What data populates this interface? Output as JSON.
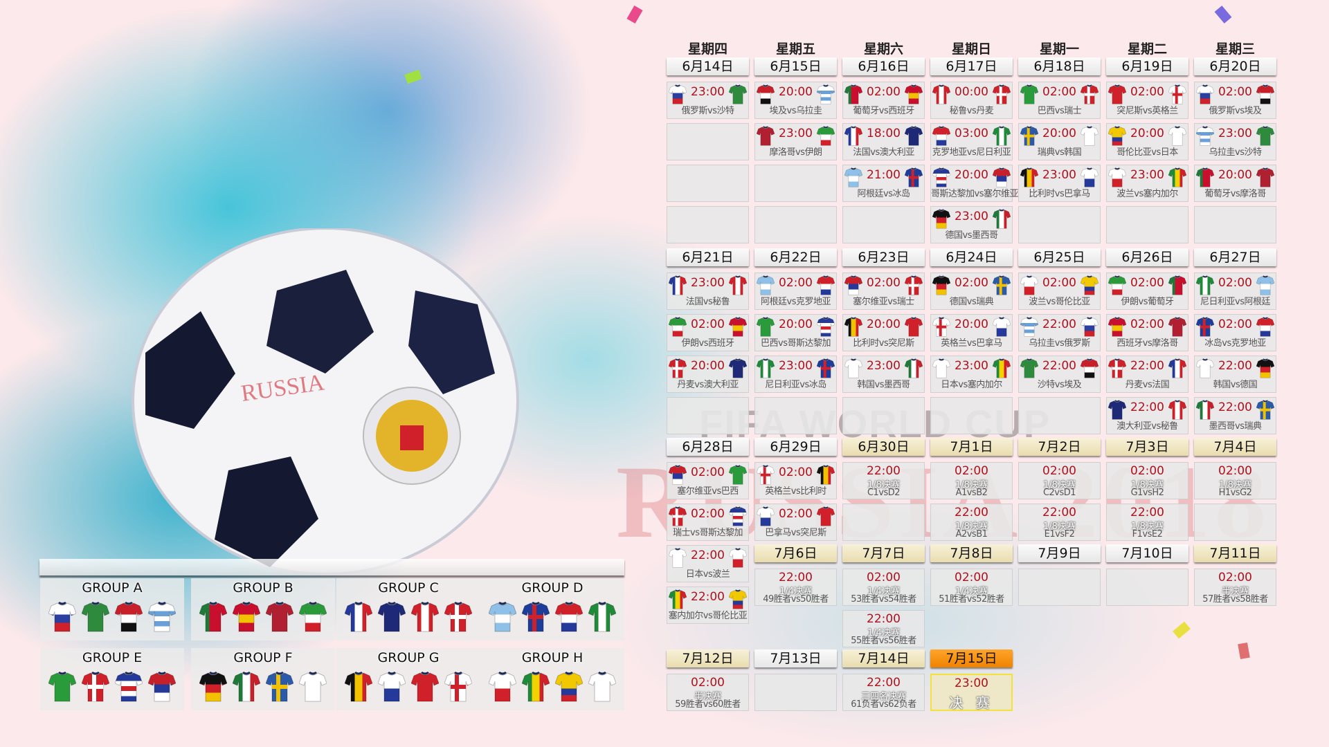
{
  "weekdays": [
    "星期四",
    "星期五",
    "星期六",
    "星期日",
    "星期一",
    "星期二",
    "星期三"
  ],
  "watermark": {
    "fifa": "FIFA WORLD CUP",
    "russia": "RUSSIA 2018"
  },
  "colors": {
    "time": "#b0111d",
    "knockout_header": "#e8dcae",
    "final_header": "#f08200",
    "final_border": "#f2e23a"
  },
  "teams": {
    "俄罗斯": {
      "p": "h",
      "c": [
        "#ffffff",
        "#2a3fa0",
        "#d0202a"
      ]
    },
    "沙特": {
      "p": "s",
      "c": [
        "#2e8b3e"
      ]
    },
    "埃及": {
      "p": "h",
      "c": [
        "#c8202a",
        "#ffffff",
        "#111111"
      ]
    },
    "乌拉圭": {
      "p": "h",
      "c": [
        "#ffffff",
        "#6aa0d8",
        "#ffffff",
        "#6aa0d8",
        "#ffffff"
      ]
    },
    "葡萄牙": {
      "p": "v",
      "c": [
        "#1f7a3a",
        "#c8102e",
        "#c8102e"
      ]
    },
    "西班牙": {
      "p": "h",
      "c": [
        "#c8102e",
        "#f2c200",
        "#c8102e"
      ]
    },
    "摩洛哥": {
      "p": "s",
      "c": [
        "#b02030"
      ]
    },
    "伊朗": {
      "p": "h",
      "c": [
        "#2a9a3a",
        "#ffffff",
        "#d0202a"
      ]
    },
    "法国": {
      "p": "v",
      "c": [
        "#24399a",
        "#ffffff",
        "#d0202a"
      ]
    },
    "澳大利亚": {
      "p": "s",
      "c": [
        "#1e2a78"
      ]
    },
    "秘鲁": {
      "p": "v",
      "c": [
        "#d0202a",
        "#ffffff",
        "#d0202a"
      ]
    },
    "丹麦": {
      "p": "x",
      "c": [
        "#d0202a",
        "#ffffff"
      ]
    },
    "阿根廷": {
      "p": "h",
      "c": [
        "#8ec0e8",
        "#ffffff",
        "#8ec0e8"
      ]
    },
    "冰岛": {
      "p": "x",
      "c": [
        "#1e3c9a",
        "#d0202a"
      ]
    },
    "克罗地亚": {
      "p": "h",
      "c": [
        "#d0202a",
        "#ffffff",
        "#24399a"
      ]
    },
    "尼日利亚": {
      "p": "v",
      "c": [
        "#1f8a3a",
        "#ffffff",
        "#1f8a3a"
      ]
    },
    "巴西": {
      "p": "s",
      "c": [
        "#2a9b3a"
      ]
    },
    "瑞士": {
      "p": "x",
      "c": [
        "#d0202a",
        "#ffffff"
      ]
    },
    "哥斯达黎加": {
      "p": "h",
      "c": [
        "#24399a",
        "#ffffff",
        "#d0202a",
        "#ffffff",
        "#24399a"
      ]
    },
    "塞尔维亚": {
      "p": "h",
      "c": [
        "#c8202a",
        "#24399a",
        "#ffffff"
      ]
    },
    "德国": {
      "p": "h",
      "c": [
        "#111111",
        "#d0202a",
        "#f2c200"
      ]
    },
    "墨西哥": {
      "p": "v",
      "c": [
        "#1f7a3a",
        "#ffffff",
        "#c8202a"
      ]
    },
    "瑞典": {
      "p": "x",
      "c": [
        "#2a5aa8",
        "#f2c200"
      ]
    },
    "韩国": {
      "p": "s",
      "c": [
        "#ffffff"
      ]
    },
    "比利时": {
      "p": "v",
      "c": [
        "#111111",
        "#f2c200",
        "#d0202a"
      ]
    },
    "巴拿马": {
      "p": "h",
      "c": [
        "#ffffff",
        "#24399a"
      ]
    },
    "突尼斯": {
      "p": "s",
      "c": [
        "#d0202a"
      ]
    },
    "英格兰": {
      "p": "x",
      "c": [
        "#ffffff",
        "#d0202a"
      ]
    },
    "波兰": {
      "p": "h",
      "c": [
        "#ffffff",
        "#d0202a"
      ]
    },
    "塞内加尔": {
      "p": "v",
      "c": [
        "#1f8a3a",
        "#f2d200",
        "#d0202a"
      ]
    },
    "哥伦比亚": {
      "p": "h",
      "c": [
        "#f2c800",
        "#f2c800",
        "#24399a",
        "#d0202a"
      ]
    },
    "日本": {
      "p": "s",
      "c": [
        "#ffffff"
      ]
    }
  },
  "weeks": [
    {
      "start_col": 0,
      "days": [
        {
          "date": "6月14日",
          "style": "group",
          "matches": [
            {
              "time": "23:00",
              "home": "俄罗斯",
              "away": "沙特",
              "label": "俄罗斯vs沙特"
            }
          ]
        },
        {
          "date": "6月15日",
          "style": "group",
          "matches": [
            {
              "time": "20:00",
              "home": "埃及",
              "away": "乌拉圭",
              "label": "埃及vs乌拉圭"
            },
            {
              "time": "23:00",
              "home": "摩洛哥",
              "away": "伊朗",
              "label": "摩洛哥vs伊朗"
            }
          ]
        },
        {
          "date": "6月16日",
          "style": "group",
          "matches": [
            {
              "time": "02:00",
              "home": "葡萄牙",
              "away": "西班牙",
              "label": "葡萄牙vs西班牙"
            },
            {
              "time": "18:00",
              "home": "法国",
              "away": "澳大利亚",
              "label": "法国vs澳大利亚"
            },
            {
              "time": "21:00",
              "home": "阿根廷",
              "away": "冰岛",
              "label": "阿根廷vs冰岛"
            }
          ]
        },
        {
          "date": "6月17日",
          "style": "group",
          "matches": [
            {
              "time": "00:00",
              "home": "秘鲁",
              "away": "丹麦",
              "label": "秘鲁vs丹麦"
            },
            {
              "time": "03:00",
              "home": "克罗地亚",
              "away": "尼日利亚",
              "label": "克罗地亚vs尼日利亚"
            },
            {
              "time": "20:00",
              "home": "哥斯达黎加",
              "away": "塞尔维亚",
              "label": "哥斯达黎加vs塞尔维亚"
            },
            {
              "time": "23:00",
              "home": "德国",
              "away": "墨西哥",
              "label": "德国vs墨西哥"
            }
          ]
        },
        {
          "date": "6月18日",
          "style": "group",
          "matches": [
            {
              "time": "02:00",
              "home": "巴西",
              "away": "瑞士",
              "label": "巴西vs瑞士"
            },
            {
              "time": "20:00",
              "home": "瑞典",
              "away": "韩国",
              "label": "瑞典vs韩国"
            },
            {
              "time": "23:00",
              "home": "比利时",
              "away": "巴拿马",
              "label": "比利时vs巴拿马"
            }
          ]
        },
        {
          "date": "6月19日",
          "style": "group",
          "matches": [
            {
              "time": "02:00",
              "home": "突尼斯",
              "away": "英格兰",
              "label": "突尼斯vs英格兰"
            },
            {
              "time": "20:00",
              "home": "哥伦比亚",
              "away": "日本",
              "label": "哥伦比亚vs日本"
            },
            {
              "time": "23:00",
              "home": "波兰",
              "away": "塞内加尔",
              "label": "波兰vs塞内加尔"
            }
          ]
        },
        {
          "date": "6月20日",
          "style": "group",
          "matches": [
            {
              "time": "02:00",
              "home": "俄罗斯",
              "away": "埃及",
              "label": "俄罗斯vs埃及"
            },
            {
              "time": "23:00",
              "home": "乌拉圭",
              "away": "沙特",
              "label": "乌拉圭vs沙特"
            },
            {
              "time": "20:00",
              "home": "葡萄牙",
              "away": "摩洛哥",
              "label": "葡萄牙vs摩洛哥"
            }
          ]
        }
      ]
    },
    {
      "start_col": 0,
      "days": [
        {
          "date": "6月21日",
          "style": "group",
          "matches": [
            {
              "time": "23:00",
              "home": "法国",
              "away": "秘鲁",
              "label": "法国vs秘鲁"
            },
            {
              "time": "02:00",
              "home": "伊朗",
              "away": "西班牙",
              "label": "伊朗vs西班牙"
            },
            {
              "time": "20:00",
              "home": "丹麦",
              "away": "澳大利亚",
              "label": "丹麦vs澳大利亚"
            }
          ]
        },
        {
          "date": "6月22日",
          "style": "group",
          "matches": [
            {
              "time": "02:00",
              "home": "阿根廷",
              "away": "克罗地亚",
              "label": "阿根廷vs克罗地亚"
            },
            {
              "time": "20:00",
              "home": "巴西",
              "away": "哥斯达黎加",
              "label": "巴西vs哥斯达黎加"
            },
            {
              "time": "23:00",
              "home": "尼日利亚",
              "away": "冰岛",
              "label": "尼日利亚vs冰岛"
            }
          ]
        },
        {
          "date": "6月23日",
          "style": "group",
          "matches": [
            {
              "time": "02:00",
              "home": "塞尔维亚",
              "away": "瑞士",
              "label": "塞尔维亚vs瑞士"
            },
            {
              "time": "20:00",
              "home": "比利时",
              "away": "突尼斯",
              "label": "比利时vs突尼斯"
            },
            {
              "time": "23:00",
              "home": "韩国",
              "away": "墨西哥",
              "label": "韩国vs墨西哥"
            }
          ]
        },
        {
          "date": "6月24日",
          "style": "group",
          "matches": [
            {
              "time": "02:00",
              "home": "德国",
              "away": "瑞典",
              "label": "德国vs瑞典"
            },
            {
              "time": "20:00",
              "home": "英格兰",
              "away": "巴拿马",
              "label": "英格兰vs巴拿马"
            },
            {
              "time": "23:00",
              "home": "日本",
              "away": "塞内加尔",
              "label": "日本vs塞内加尔"
            }
          ]
        },
        {
          "date": "6月25日",
          "style": "group",
          "matches": [
            {
              "time": "02:00",
              "home": "波兰",
              "away": "哥伦比亚",
              "label": "波兰vs哥伦比亚"
            },
            {
              "time": "22:00",
              "home": "乌拉圭",
              "away": "俄罗斯",
              "label": "乌拉圭vs俄罗斯"
            },
            {
              "time": "22:00",
              "home": "沙特",
              "away": "埃及",
              "label": "沙特vs埃及"
            }
          ]
        },
        {
          "date": "6月26日",
          "style": "group",
          "matches": [
            {
              "time": "02:00",
              "home": "伊朗",
              "away": "葡萄牙",
              "label": "伊朗vs葡萄牙"
            },
            {
              "time": "02:00",
              "home": "西班牙",
              "away": "摩洛哥",
              "label": "西班牙vs摩洛哥"
            },
            {
              "time": "22:00",
              "home": "丹麦",
              "away": "法国",
              "label": "丹麦vs法国"
            },
            {
              "time": "22:00",
              "home": "澳大利亚",
              "away": "秘鲁",
              "label": "澳大利亚vs秘鲁"
            }
          ]
        },
        {
          "date": "6月27日",
          "style": "group",
          "matches": [
            {
              "time": "02:00",
              "home": "尼日利亚",
              "away": "阿根廷",
              "label": "尼日利亚vs阿根廷"
            },
            {
              "time": "02:00",
              "home": "冰岛",
              "away": "克罗地亚",
              "label": "冰岛vs克罗地亚"
            },
            {
              "time": "22:00",
              "home": "韩国",
              "away": "德国",
              "label": "韩国vs德国"
            },
            {
              "time": "22:00",
              "home": "墨西哥",
              "away": "瑞典",
              "label": "墨西哥vs瑞典"
            }
          ]
        }
      ]
    },
    {
      "start_col": 0,
      "days": [
        {
          "date": "6月28日",
          "style": "group",
          "matches": [
            {
              "time": "02:00",
              "home": "塞尔维亚",
              "away": "巴西",
              "label": "塞尔维亚vs巴西"
            },
            {
              "time": "02:00",
              "home": "瑞士",
              "away": "哥斯达黎加",
              "label": "瑞士vs哥斯达黎加"
            },
            {
              "time": "22:00",
              "home": "日本",
              "away": "波兰",
              "label": "日本vs波兰"
            },
            {
              "time": "22:00",
              "home": "塞内加尔",
              "away": "哥伦比亚",
              "label": "塞内加尔vs哥伦比亚"
            }
          ]
        },
        {
          "date": "6月29日",
          "style": "group",
          "matches": [
            {
              "time": "02:00",
              "home": "英格兰",
              "away": "比利时",
              "label": "英格兰vs比利时"
            },
            {
              "time": "02:00",
              "home": "巴拿马",
              "away": "突尼斯",
              "label": "巴拿马vs突尼斯"
            }
          ]
        },
        {
          "date": "6月30日",
          "style": "knockout",
          "matches": [
            {
              "time": "22:00",
              "round": "1/8决赛",
              "label": "C1vsD2"
            }
          ]
        },
        {
          "date": "7月1日",
          "style": "knockout",
          "matches": [
            {
              "time": "02:00",
              "round": "1/8决赛",
              "label": "A1vsB2"
            },
            {
              "time": "22:00",
              "round": "1/8决赛",
              "label": "A2vsB1"
            }
          ]
        },
        {
          "date": "7月2日",
          "style": "knockout",
          "matches": [
            {
              "time": "02:00",
              "round": "1/8决赛",
              "label": "C2vsD1"
            },
            {
              "time": "22:00",
              "round": "1/8决赛",
              "label": "E1vsF2"
            }
          ]
        },
        {
          "date": "7月3日",
          "style": "knockout",
          "matches": [
            {
              "time": "02:00",
              "round": "1/8决赛",
              "label": "G1vsH2"
            },
            {
              "time": "22:00",
              "round": "1/8决赛",
              "label": "F1vsE2"
            }
          ]
        },
        {
          "date": "7月4日",
          "style": "knockout",
          "matches": [
            {
              "time": "02:00",
              "round": "1/8决赛",
              "label": "H1vsG2"
            }
          ]
        }
      ]
    },
    {
      "start_col": 1,
      "days": [
        {
          "date": "7月6日",
          "style": "knockout",
          "matches": [
            {
              "time": "22:00",
              "round": "1/4决赛",
              "label": "49胜者vs50胜者"
            }
          ]
        },
        {
          "date": "7月7日",
          "style": "knockout",
          "matches": [
            {
              "time": "02:00",
              "round": "1/4决赛",
              "label": "53胜者vs54胜者"
            },
            {
              "time": "22:00",
              "round": "1/4决赛",
              "label": "55胜者vs56胜者"
            }
          ]
        },
        {
          "date": "7月8日",
          "style": "knockout",
          "matches": [
            {
              "time": "02:00",
              "round": "1/4决赛",
              "label": "51胜者vs52胜者"
            }
          ]
        },
        {
          "date": "7月9日",
          "style": "group",
          "matches": []
        },
        {
          "date": "7月10日",
          "style": "group",
          "matches": []
        },
        {
          "date": "7月11日",
          "style": "knockout",
          "matches": [
            {
              "time": "02:00",
              "round": "半决赛",
              "label": "57胜者vs58胜者"
            }
          ]
        }
      ]
    },
    {
      "start_col": 0,
      "days": [
        {
          "date": "7月12日",
          "style": "knockout",
          "matches": [
            {
              "time": "02:00",
              "round": "半决赛",
              "label": "59胜者vs60胜者"
            }
          ]
        },
        {
          "date": "7月13日",
          "style": "group",
          "matches": []
        },
        {
          "date": "7月14日",
          "style": "knockout",
          "matches": [
            {
              "time": "22:00",
              "round": "三四名决赛",
              "label": "61负者vs62负者"
            }
          ]
        },
        {
          "date": "7月15日",
          "style": "final",
          "matches": [
            {
              "time": "23:00",
              "round": "决 赛",
              "final": true
            }
          ]
        }
      ]
    }
  ],
  "groups": [
    {
      "name": "GROUP A",
      "teams": [
        "俄罗斯",
        "沙特",
        "埃及",
        "乌拉圭"
      ]
    },
    {
      "name": "GROUP B",
      "teams": [
        "葡萄牙",
        "西班牙",
        "摩洛哥",
        "伊朗"
      ]
    },
    {
      "name": "GROUP C",
      "teams": [
        "法国",
        "澳大利亚",
        "秘鲁",
        "丹麦"
      ]
    },
    {
      "name": "GROUP D",
      "teams": [
        "阿根廷",
        "冰岛",
        "克罗地亚",
        "尼日利亚"
      ]
    },
    {
      "name": "GROUP E",
      "teams": [
        "巴西",
        "瑞士",
        "哥斯达黎加",
        "塞尔维亚"
      ]
    },
    {
      "name": "GROUP F",
      "teams": [
        "德国",
        "墨西哥",
        "瑞典",
        "韩国"
      ]
    },
    {
      "name": "GROUP G",
      "teams": [
        "比利时",
        "巴拿马",
        "突尼斯",
        "英格兰"
      ]
    },
    {
      "name": "GROUP H",
      "teams": [
        "波兰",
        "塞内加尔",
        "哥伦比亚",
        "日本"
      ]
    }
  ]
}
